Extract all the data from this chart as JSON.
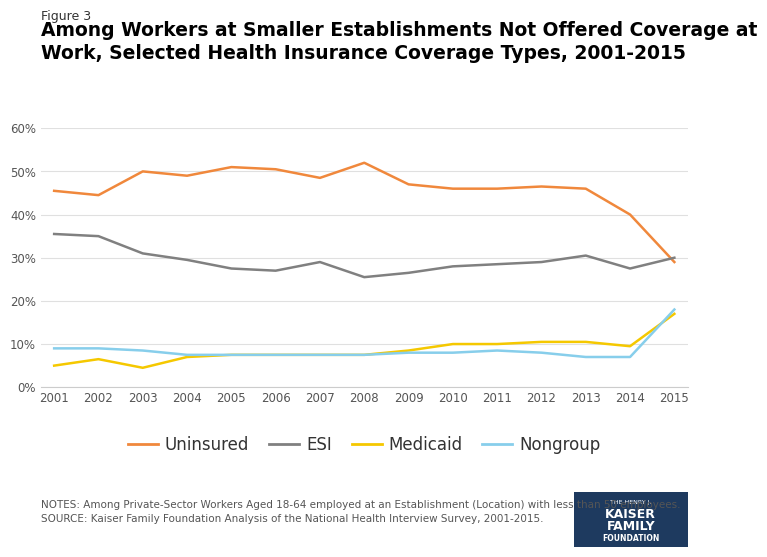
{
  "years": [
    2001,
    2002,
    2003,
    2004,
    2005,
    2006,
    2007,
    2008,
    2009,
    2010,
    2011,
    2012,
    2013,
    2014,
    2015
  ],
  "uninsured": [
    45.5,
    44.5,
    50.0,
    49.0,
    51.0,
    50.5,
    48.5,
    52.0,
    47.0,
    46.0,
    46.0,
    46.5,
    46.0,
    40.0,
    29.0
  ],
  "esi": [
    35.5,
    35.0,
    31.0,
    29.5,
    27.5,
    27.0,
    29.0,
    25.5,
    26.5,
    28.0,
    28.5,
    29.0,
    30.5,
    27.5,
    30.0
  ],
  "medicaid": [
    5.0,
    6.5,
    4.5,
    7.0,
    7.5,
    7.5,
    7.5,
    7.5,
    8.5,
    10.0,
    10.0,
    10.5,
    10.5,
    9.5,
    17.0
  ],
  "nongroup": [
    9.0,
    9.0,
    8.5,
    7.5,
    7.5,
    7.5,
    7.5,
    7.5,
    8.0,
    8.0,
    8.5,
    8.0,
    7.0,
    7.0,
    18.0
  ],
  "uninsured_color": "#f0883c",
  "esi_color": "#808080",
  "medicaid_color": "#f5c800",
  "nongroup_color": "#87ceeb",
  "figure_label": "Figure 3",
  "title_line1": "Among Workers at Smaller Establishments Not Offered Coverage at",
  "title_line2": "Work, Selected Health Insurance Coverage Types, 2001-2015",
  "notes_line1": "NOTES: Among Private-Sector Workers Aged 18-64 employed at an Establishment (Location) with less than 50 employees.",
  "notes_line2": "SOURCE: Kaiser Family Foundation Analysis of the National Health Interview Survey, 2001-2015.",
  "ylim": [
    0,
    60
  ],
  "yticks": [
    0,
    10,
    20,
    30,
    40,
    50,
    60
  ],
  "background_color": "#ffffff",
  "logo_color": "#1e3a5f",
  "logo_text1": "THE HENRY J.",
  "logo_text2": "KAISER",
  "logo_text3": "FAMILY",
  "logo_text4": "FOUNDATION"
}
